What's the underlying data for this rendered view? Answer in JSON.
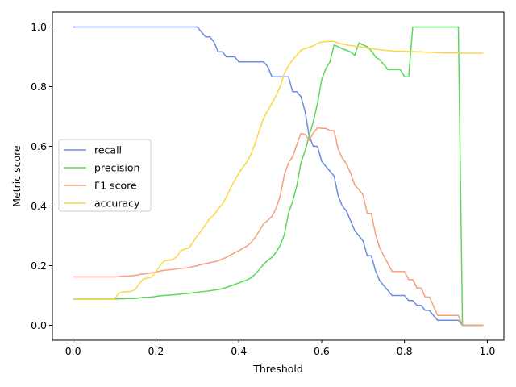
{
  "chart_data": {
    "type": "line",
    "xlabel": "Threshold",
    "ylabel": "Metric score",
    "xlim": [
      -0.05,
      1.04
    ],
    "ylim": [
      -0.05,
      1.05
    ],
    "x_ticks": [
      "0.0",
      "0.2",
      "0.4",
      "0.6",
      "0.8",
      "1.0"
    ],
    "y_ticks": [
      "0.0",
      "0.2",
      "0.4",
      "0.6",
      "0.8",
      "1.0"
    ],
    "grid": false,
    "legend_position": "center-left",
    "x": [
      0,
      0.01,
      0.02,
      0.03,
      0.04,
      0.05,
      0.06,
      0.07,
      0.08,
      0.09,
      0.1,
      0.11,
      0.12,
      0.13,
      0.14,
      0.15,
      0.16,
      0.17,
      0.18,
      0.19,
      0.2,
      0.21,
      0.22,
      0.23,
      0.24,
      0.25,
      0.26,
      0.27,
      0.28,
      0.29,
      0.3,
      0.31,
      0.32,
      0.33,
      0.34,
      0.35,
      0.36,
      0.37,
      0.38,
      0.39,
      0.4,
      0.41,
      0.42,
      0.43,
      0.44,
      0.45,
      0.46,
      0.47,
      0.48,
      0.49,
      0.5,
      0.51,
      0.52,
      0.53,
      0.54,
      0.55,
      0.56,
      0.57,
      0.58,
      0.59,
      0.6,
      0.61,
      0.62,
      0.63,
      0.64,
      0.65,
      0.66,
      0.67,
      0.68,
      0.69,
      0.7,
      0.71,
      0.72,
      0.73,
      0.74,
      0.75,
      0.76,
      0.77,
      0.78,
      0.79,
      0.8,
      0.81,
      0.82,
      0.83,
      0.84,
      0.85,
      0.86,
      0.87,
      0.88,
      0.89,
      0.9,
      0.91,
      0.92,
      0.93,
      0.94,
      0.95,
      0.96,
      0.97,
      0.98,
      0.99
    ],
    "series": [
      {
        "name": "recall",
        "color": "#6b8ae6",
        "values": [
          1.0,
          1.0,
          1.0,
          1.0,
          1.0,
          1.0,
          1.0,
          1.0,
          1.0,
          1.0,
          1.0,
          1.0,
          1.0,
          1.0,
          1.0,
          1.0,
          1.0,
          1.0,
          1.0,
          1.0,
          1.0,
          1.0,
          1.0,
          1.0,
          1.0,
          1.0,
          1.0,
          1.0,
          1.0,
          1.0,
          1.0,
          0.983,
          0.967,
          0.967,
          0.95,
          0.917,
          0.917,
          0.9,
          0.9,
          0.9,
          0.883,
          0.883,
          0.883,
          0.883,
          0.883,
          0.883,
          0.883,
          0.867,
          0.833,
          0.833,
          0.833,
          0.833,
          0.833,
          0.783,
          0.783,
          0.767,
          0.717,
          0.633,
          0.6,
          0.6,
          0.55,
          0.533,
          0.517,
          0.5,
          0.433,
          0.4,
          0.383,
          0.35,
          0.317,
          0.3,
          0.283,
          0.233,
          0.233,
          0.183,
          0.15,
          0.133,
          0.117,
          0.1,
          0.1,
          0.1,
          0.1,
          0.083,
          0.083,
          0.067,
          0.067,
          0.05,
          0.05,
          0.033,
          0.017,
          0.017,
          0.017,
          0.017,
          0.017,
          0.017,
          0.0,
          0.0,
          0.0,
          0.0,
          0.0,
          0.0
        ]
      },
      {
        "name": "precision",
        "color": "#5bd85b",
        "values": [
          0.088,
          0.088,
          0.088,
          0.088,
          0.088,
          0.088,
          0.088,
          0.088,
          0.088,
          0.088,
          0.088,
          0.089,
          0.089,
          0.09,
          0.09,
          0.09,
          0.092,
          0.094,
          0.094,
          0.095,
          0.097,
          0.099,
          0.1,
          0.101,
          0.102,
          0.103,
          0.105,
          0.106,
          0.107,
          0.109,
          0.111,
          0.113,
          0.114,
          0.116,
          0.118,
          0.12,
          0.123,
          0.127,
          0.132,
          0.137,
          0.142,
          0.147,
          0.152,
          0.16,
          0.172,
          0.188,
          0.205,
          0.218,
          0.228,
          0.245,
          0.268,
          0.304,
          0.376,
          0.415,
          0.468,
          0.545,
          0.585,
          0.635,
          0.685,
          0.744,
          0.823,
          0.86,
          0.883,
          0.94,
          0.934,
          0.927,
          0.922,
          0.916,
          0.905,
          0.947,
          0.94,
          0.934,
          0.92,
          0.9,
          0.89,
          0.875,
          0.857,
          0.857,
          0.857,
          0.857,
          0.833,
          0.833,
          1.0,
          1.0,
          1.0,
          1.0,
          1.0,
          1.0,
          1.0,
          1.0,
          1.0,
          1.0,
          1.0,
          1.0,
          0.0,
          0.0,
          0.0,
          0.0,
          0.0,
          0.0
        ]
      },
      {
        "name": "F1 score",
        "color": "#f4a07c",
        "values": [
          0.162,
          0.162,
          0.162,
          0.162,
          0.162,
          0.162,
          0.162,
          0.162,
          0.162,
          0.162,
          0.162,
          0.163,
          0.165,
          0.165,
          0.166,
          0.167,
          0.17,
          0.172,
          0.174,
          0.176,
          0.178,
          0.182,
          0.184,
          0.186,
          0.187,
          0.189,
          0.191,
          0.192,
          0.194,
          0.197,
          0.2,
          0.204,
          0.207,
          0.21,
          0.213,
          0.216,
          0.222,
          0.228,
          0.236,
          0.243,
          0.25,
          0.258,
          0.266,
          0.278,
          0.296,
          0.318,
          0.34,
          0.352,
          0.365,
          0.392,
          0.435,
          0.505,
          0.545,
          0.565,
          0.605,
          0.643,
          0.64,
          0.62,
          0.645,
          0.662,
          0.66,
          0.66,
          0.653,
          0.652,
          0.59,
          0.56,
          0.541,
          0.509,
          0.47,
          0.455,
          0.437,
          0.375,
          0.375,
          0.306,
          0.26,
          0.233,
          0.207,
          0.18,
          0.18,
          0.18,
          0.18,
          0.153,
          0.153,
          0.125,
          0.125,
          0.095,
          0.095,
          0.065,
          0.033,
          0.033,
          0.033,
          0.033,
          0.033,
          0.033,
          0.0,
          0.0,
          0.0,
          0.0,
          0.0,
          0.0
        ]
      },
      {
        "name": "accuracy",
        "color": "#fbd746",
        "values": [
          0.088,
          0.088,
          0.088,
          0.088,
          0.088,
          0.088,
          0.088,
          0.088,
          0.088,
          0.088,
          0.088,
          0.108,
          0.112,
          0.113,
          0.114,
          0.12,
          0.14,
          0.156,
          0.158,
          0.162,
          0.18,
          0.2,
          0.216,
          0.218,
          0.22,
          0.23,
          0.25,
          0.256,
          0.26,
          0.28,
          0.3,
          0.318,
          0.338,
          0.358,
          0.37,
          0.39,
          0.405,
          0.43,
          0.46,
          0.485,
          0.51,
          0.53,
          0.548,
          0.575,
          0.612,
          0.655,
          0.695,
          0.72,
          0.745,
          0.77,
          0.8,
          0.845,
          0.87,
          0.89,
          0.905,
          0.922,
          0.928,
          0.932,
          0.937,
          0.945,
          0.95,
          0.951,
          0.952,
          0.952,
          0.946,
          0.943,
          0.94,
          0.938,
          0.936,
          0.934,
          0.932,
          0.93,
          0.928,
          0.926,
          0.924,
          0.922,
          0.921,
          0.92,
          0.919,
          0.919,
          0.919,
          0.918,
          0.918,
          0.917,
          0.917,
          0.916,
          0.915,
          0.915,
          0.914,
          0.913,
          0.913,
          0.913,
          0.913,
          0.913,
          0.912,
          0.912,
          0.912,
          0.912,
          0.912,
          0.912
        ]
      }
    ]
  }
}
